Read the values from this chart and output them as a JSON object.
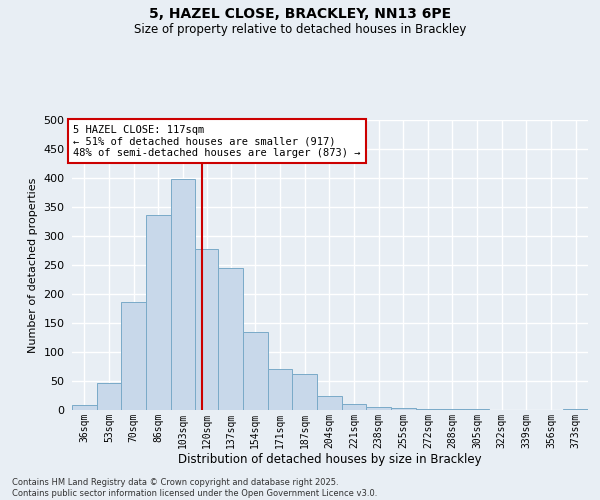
{
  "title": "5, HAZEL CLOSE, BRACKLEY, NN13 6PE",
  "subtitle": "Size of property relative to detached houses in Brackley",
  "xlabel": "Distribution of detached houses by size in Brackley",
  "ylabel": "Number of detached properties",
  "footer_line1": "Contains HM Land Registry data © Crown copyright and database right 2025.",
  "footer_line2": "Contains public sector information licensed under the Open Government Licence v3.0.",
  "annotation_line1": "5 HAZEL CLOSE: 117sqm",
  "annotation_line2": "← 51% of detached houses are smaller (917)",
  "annotation_line3": "48% of semi-detached houses are larger (873) →",
  "property_size": 117,
  "bar_color": "#c8d8ea",
  "bar_edge_color": "#7aaac8",
  "vline_color": "#cc0000",
  "annotation_box_color": "#cc0000",
  "background_color": "#e8eef4",
  "grid_color": "#ffffff",
  "categories": [
    "36sqm",
    "53sqm",
    "70sqm",
    "86sqm",
    "103sqm",
    "120sqm",
    "137sqm",
    "154sqm",
    "171sqm",
    "187sqm",
    "204sqm",
    "221sqm",
    "238sqm",
    "255sqm",
    "272sqm",
    "288sqm",
    "305sqm",
    "322sqm",
    "339sqm",
    "356sqm",
    "373sqm"
  ],
  "bin_edges": [
    27.5,
    44.5,
    61.5,
    78.5,
    95.5,
    112.5,
    128.5,
    145.5,
    162.5,
    179.5,
    196.5,
    213.5,
    230.5,
    247.5,
    264.5,
    281.5,
    298.5,
    315.5,
    332.5,
    349.5,
    366.5,
    383.5
  ],
  "values": [
    8,
    46,
    187,
    337,
    399,
    277,
    245,
    135,
    70,
    62,
    24,
    10,
    5,
    4,
    2,
    1,
    1,
    0,
    0,
    0,
    2
  ],
  "ylim": [
    0,
    500
  ],
  "yticks": [
    0,
    50,
    100,
    150,
    200,
    250,
    300,
    350,
    400,
    450,
    500
  ]
}
